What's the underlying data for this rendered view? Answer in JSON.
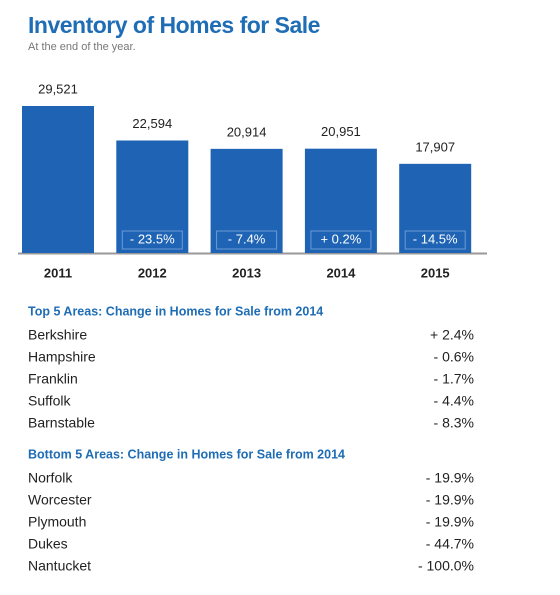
{
  "chart_data": {
    "type": "bar",
    "title": "Inventory of Homes for Sale",
    "subtitle": "At the end of the year.",
    "categories": [
      "2011",
      "2012",
      "2013",
      "2014",
      "2015"
    ],
    "values": [
      29521,
      22594,
      20914,
      20951,
      17907
    ],
    "value_labels": [
      "29,521",
      "22,594",
      "20,914",
      "20,951",
      "17,907"
    ],
    "change_labels": [
      null,
      "- 23.5%",
      "- 7.4%",
      "+ 0.2%",
      "- 14.5%"
    ],
    "color": "#1f63b5"
  },
  "top_areas": {
    "title": "Top 5 Areas: Change in Homes for Sale from 2014",
    "rows": [
      [
        "Berkshire",
        "+ 2.4%"
      ],
      [
        "Hampshire",
        "- 0.6%"
      ],
      [
        "Franklin",
        "- 1.7%"
      ],
      [
        "Suffolk",
        "- 4.4%"
      ],
      [
        "Barnstable",
        "- 8.3%"
      ]
    ]
  },
  "bottom_areas": {
    "title": "Bottom 5 Areas: Change in Homes for Sale from 2014",
    "rows": [
      [
        "Norfolk",
        "- 19.9%"
      ],
      [
        "Worcester",
        "- 19.9%"
      ],
      [
        "Plymouth",
        "- 19.9%"
      ],
      [
        "Dukes",
        "- 44.7%"
      ],
      [
        "Nantucket",
        "- 100.0%"
      ]
    ]
  }
}
